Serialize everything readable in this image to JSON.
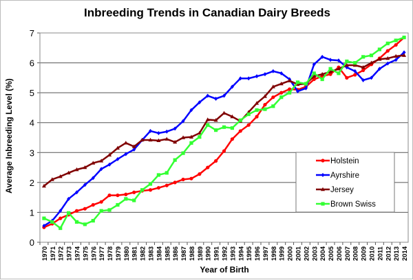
{
  "chart_data": {
    "type": "line",
    "title": "Inbreeding Trends in Canadian Dairy Breeds",
    "xlabel": "Year of Birth",
    "ylabel": "Average Inbreeding Level (%)",
    "ylim": [
      0,
      7
    ],
    "yticks": [
      "0",
      "1",
      "2",
      "3",
      "4",
      "5",
      "6",
      "7"
    ],
    "grid": true,
    "legend": "right",
    "x": [
      "1970",
      "1971",
      "1972",
      "1973",
      "1974",
      "1975",
      "1976",
      "1977",
      "1978",
      "1979",
      "1980",
      "1981",
      "1982",
      "1983",
      "1984",
      "1985",
      "1986",
      "1987",
      "1988",
      "1989",
      "1990",
      "1991",
      "1992",
      "1993",
      "1994",
      "1995",
      "1996",
      "1997",
      "1998",
      "1999",
      "2000",
      "2001",
      "2002",
      "2003",
      "2004",
      "2005",
      "2006",
      "2007",
      "2008",
      "2009",
      "2010",
      "2011",
      "2012",
      "2013",
      "2014"
    ],
    "series": [
      {
        "name": "Holstein",
        "color": "#ff0000",
        "marker": "circle",
        "values": [
          0.5,
          0.62,
          0.8,
          0.92,
          1.05,
          1.12,
          1.25,
          1.35,
          1.57,
          1.57,
          1.6,
          1.67,
          1.72,
          1.75,
          1.82,
          1.9,
          2.0,
          2.1,
          2.13,
          2.28,
          2.5,
          2.72,
          3.05,
          3.45,
          3.72,
          3.92,
          4.2,
          4.6,
          4.85,
          5.0,
          5.12,
          5.1,
          5.2,
          5.45,
          5.55,
          5.62,
          5.85,
          5.5,
          5.6,
          5.75,
          5.95,
          6.15,
          6.4,
          6.6,
          6.85
        ]
      },
      {
        "name": "Ayrshire",
        "color": "#0000ff",
        "marker": "diamond",
        "values": [
          0.55,
          0.72,
          1.05,
          1.45,
          1.67,
          1.92,
          2.15,
          2.45,
          2.6,
          2.78,
          2.95,
          3.1,
          3.42,
          3.72,
          3.65,
          3.7,
          3.8,
          4.05,
          4.42,
          4.68,
          4.9,
          4.8,
          4.9,
          5.2,
          5.48,
          5.48,
          5.55,
          5.62,
          5.72,
          5.65,
          5.45,
          5.05,
          5.15,
          5.95,
          6.2,
          6.1,
          6.08,
          5.85,
          5.72,
          5.42,
          5.5,
          5.8,
          5.98,
          6.1,
          6.35
        ]
      },
      {
        "name": "Jersey",
        "color": "#800000",
        "marker": "triangle",
        "values": [
          1.88,
          2.1,
          2.2,
          2.32,
          2.43,
          2.5,
          2.65,
          2.72,
          2.92,
          3.15,
          3.32,
          3.2,
          3.42,
          3.42,
          3.4,
          3.45,
          3.35,
          3.5,
          3.52,
          3.65,
          4.1,
          4.08,
          4.32,
          4.2,
          4.05,
          4.35,
          4.65,
          4.88,
          5.2,
          5.3,
          5.4,
          5.28,
          5.3,
          5.55,
          5.62,
          5.7,
          5.8,
          5.92,
          5.92,
          5.85,
          6.0,
          6.12,
          6.15,
          6.22,
          6.25
        ]
      },
      {
        "name": "Brown Swiss",
        "color": "#33ff33",
        "marker": "square",
        "values": [
          0.8,
          0.68,
          0.47,
          0.98,
          0.68,
          0.6,
          0.72,
          1.05,
          1.08,
          1.25,
          1.45,
          1.4,
          1.75,
          1.95,
          2.25,
          2.32,
          2.75,
          2.98,
          3.32,
          3.52,
          3.92,
          3.75,
          3.85,
          3.82,
          4.08,
          4.28,
          4.42,
          4.45,
          4.55,
          4.85,
          5.0,
          5.35,
          5.3,
          5.65,
          5.45,
          5.8,
          5.65,
          6.05,
          6.0,
          6.2,
          6.25,
          6.45,
          6.65,
          6.75,
          6.85
        ]
      }
    ]
  }
}
